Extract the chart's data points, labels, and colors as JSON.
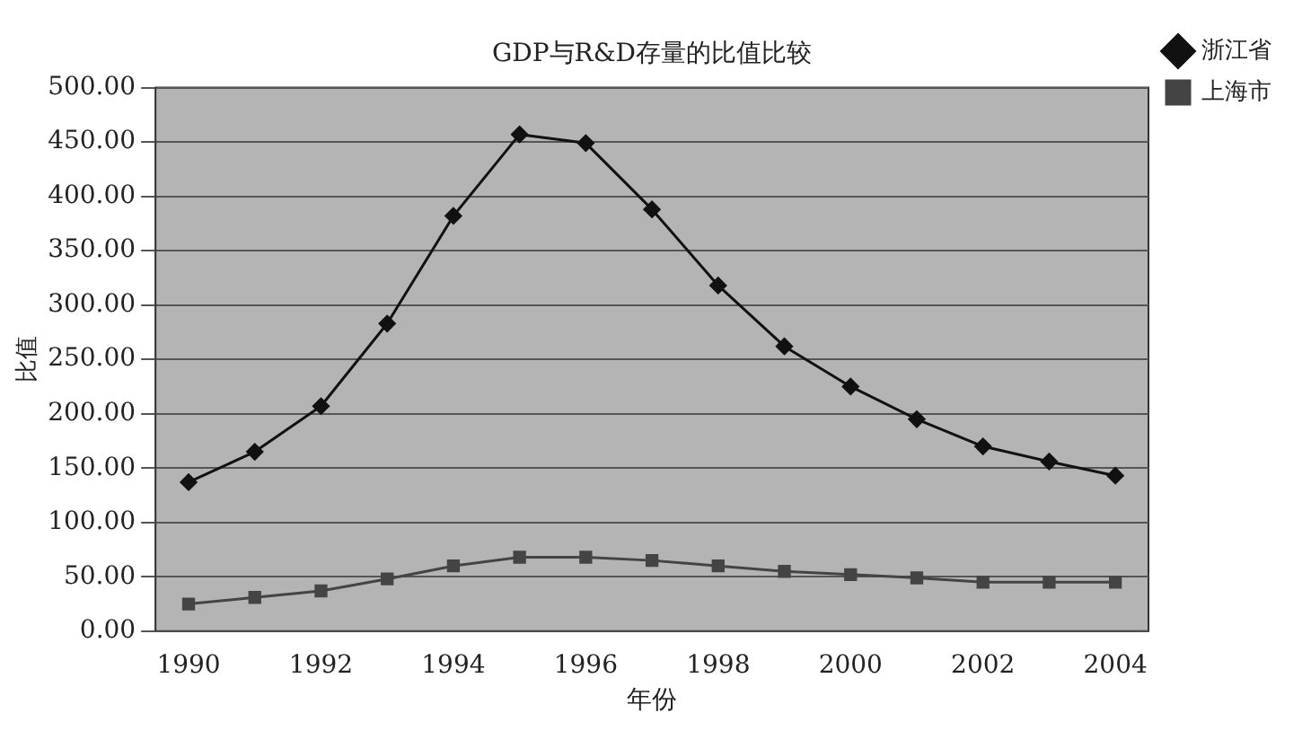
{
  "chart_data": {
    "type": "line",
    "title": "GDP与R&D存量的比值比较",
    "xlabel": "年份",
    "ylabel": "比值",
    "x": [
      1990,
      1991,
      1992,
      1993,
      1994,
      1995,
      1996,
      1997,
      1998,
      1999,
      2000,
      2001,
      2002,
      2003,
      2004
    ],
    "xlim": [
      1989.5,
      2004.5
    ],
    "xticks": [
      1990,
      1992,
      1994,
      1996,
      1998,
      2000,
      2002,
      2004
    ],
    "ylim": [
      0,
      500
    ],
    "yticks": [
      {
        "value": 0,
        "label": "0.00"
      },
      {
        "value": 50,
        "label": "50.00"
      },
      {
        "value": 100,
        "label": "100.00"
      },
      {
        "value": 150,
        "label": "150.00"
      },
      {
        "value": 200,
        "label": "200.00"
      },
      {
        "value": 250,
        "label": "250.00"
      },
      {
        "value": 300,
        "label": "300.00"
      },
      {
        "value": 350,
        "label": "350.00"
      },
      {
        "value": 400,
        "label": "400.00"
      },
      {
        "value": 450,
        "label": "450.00"
      },
      {
        "value": 500,
        "label": "500.00"
      }
    ],
    "grid": "y",
    "legend": "top right",
    "line_style": "solid",
    "series": [
      {
        "name": "浙江省",
        "color": "#111111",
        "marker": "diamond",
        "values": [
          137,
          165,
          207,
          283,
          382,
          457,
          449,
          388,
          318,
          262,
          225,
          195,
          170,
          156,
          143
        ]
      },
      {
        "name": "上海市",
        "color": "#444444",
        "marker": "square",
        "values": [
          25,
          31,
          37,
          48,
          60,
          68,
          68,
          65,
          60,
          55,
          52,
          49,
          45,
          45,
          45
        ]
      }
    ]
  }
}
